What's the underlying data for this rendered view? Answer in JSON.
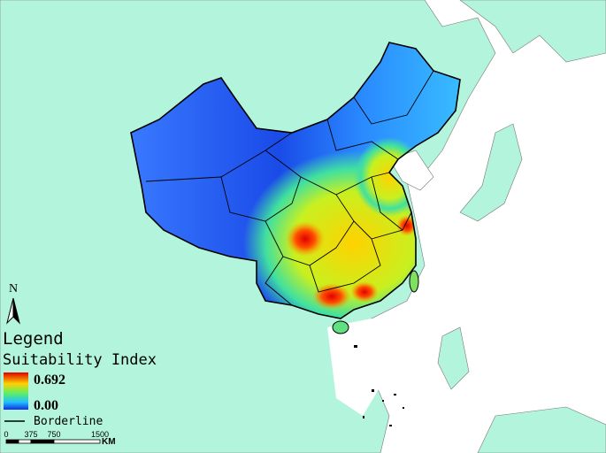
{
  "north_arrow": {
    "label": "N"
  },
  "legend": {
    "title": "Legend",
    "subtitle": "Suitability Index",
    "max_label": "0.692",
    "min_label": "0.00",
    "border_label": "Borderline"
  },
  "scale_bar": {
    "ticks": [
      "0",
      "375",
      "750",
      "1500"
    ],
    "unit": "KM"
  }
}
